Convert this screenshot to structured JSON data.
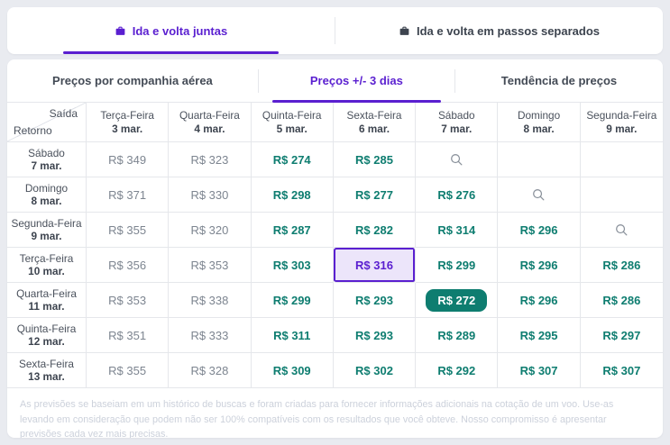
{
  "top_tabs": [
    {
      "label": "Ida e volta juntas",
      "active": true
    },
    {
      "label": "Ida e volta em passos separados",
      "active": false
    }
  ],
  "inner_tabs": [
    {
      "label": "Preços por companhia aérea",
      "active": false
    },
    {
      "label": "Preços +/- 3 dias",
      "active": true
    },
    {
      "label": "Tendência de preços",
      "active": false
    }
  ],
  "matrix": {
    "corner": {
      "top_label": "Saída",
      "bottom_label": "Retorno"
    },
    "columns": [
      {
        "day": "Terça-Feira",
        "date": "3 mar."
      },
      {
        "day": "Quarta-Feira",
        "date": "4 mar."
      },
      {
        "day": "Quinta-Feira",
        "date": "5 mar."
      },
      {
        "day": "Sexta-Feira",
        "date": "6 mar."
      },
      {
        "day": "Sábado",
        "date": "7 mar."
      },
      {
        "day": "Domingo",
        "date": "8 mar."
      },
      {
        "day": "Segunda-Feira",
        "date": "9 mar."
      }
    ],
    "rows": [
      {
        "day": "Sábado",
        "date": "7 mar.",
        "cells": [
          {
            "type": "muted",
            "value": "R$ 349"
          },
          {
            "type": "muted",
            "value": "R$ 323"
          },
          {
            "type": "low",
            "value": "R$ 274"
          },
          {
            "type": "low",
            "value": "R$ 285"
          },
          {
            "type": "search"
          },
          {
            "type": "empty"
          },
          {
            "type": "empty"
          }
        ]
      },
      {
        "day": "Domingo",
        "date": "8 mar.",
        "cells": [
          {
            "type": "muted",
            "value": "R$ 371"
          },
          {
            "type": "muted",
            "value": "R$ 330"
          },
          {
            "type": "low",
            "value": "R$ 298"
          },
          {
            "type": "low",
            "value": "R$ 277"
          },
          {
            "type": "low",
            "value": "R$ 276"
          },
          {
            "type": "search"
          },
          {
            "type": "empty"
          }
        ]
      },
      {
        "day": "Segunda-Feira",
        "date": "9 mar.",
        "cells": [
          {
            "type": "muted",
            "value": "R$ 355"
          },
          {
            "type": "muted",
            "value": "R$ 320"
          },
          {
            "type": "low",
            "value": "R$ 287"
          },
          {
            "type": "low",
            "value": "R$ 282"
          },
          {
            "type": "low",
            "value": "R$ 314"
          },
          {
            "type": "low",
            "value": "R$ 296"
          },
          {
            "type": "search"
          }
        ]
      },
      {
        "day": "Terça-Feira",
        "date": "10 mar.",
        "cells": [
          {
            "type": "muted",
            "value": "R$ 356"
          },
          {
            "type": "muted",
            "value": "R$ 353"
          },
          {
            "type": "low",
            "value": "R$ 303"
          },
          {
            "type": "selected",
            "value": "R$ 316"
          },
          {
            "type": "low",
            "value": "R$ 299"
          },
          {
            "type": "low",
            "value": "R$ 296"
          },
          {
            "type": "low",
            "value": "R$ 286"
          }
        ]
      },
      {
        "day": "Quarta-Feira",
        "date": "11 mar.",
        "cells": [
          {
            "type": "muted",
            "value": "R$ 353"
          },
          {
            "type": "muted",
            "value": "R$ 338"
          },
          {
            "type": "low",
            "value": "R$ 299"
          },
          {
            "type": "low",
            "value": "R$ 293"
          },
          {
            "type": "best",
            "value": "R$ 272"
          },
          {
            "type": "low",
            "value": "R$ 296"
          },
          {
            "type": "low",
            "value": "R$ 286"
          }
        ]
      },
      {
        "day": "Quinta-Feira",
        "date": "12 mar.",
        "cells": [
          {
            "type": "muted",
            "value": "R$ 351"
          },
          {
            "type": "muted",
            "value": "R$ 333"
          },
          {
            "type": "low",
            "value": "R$ 311"
          },
          {
            "type": "low",
            "value": "R$ 293"
          },
          {
            "type": "low",
            "value": "R$ 289"
          },
          {
            "type": "low",
            "value": "R$ 295"
          },
          {
            "type": "low",
            "value": "R$ 297"
          }
        ]
      },
      {
        "day": "Sexta-Feira",
        "date": "13 mar.",
        "cells": [
          {
            "type": "muted",
            "value": "R$ 355"
          },
          {
            "type": "muted",
            "value": "R$ 328"
          },
          {
            "type": "low",
            "value": "R$ 309"
          },
          {
            "type": "low",
            "value": "R$ 302"
          },
          {
            "type": "low",
            "value": "R$ 292"
          },
          {
            "type": "low",
            "value": "R$ 307"
          },
          {
            "type": "low",
            "value": "R$ 307"
          }
        ]
      }
    ]
  },
  "disclaimer": "As previsões se baseiam em um histórico de buscas e foram criadas para fornecer informações adicionais na cotação de um voo. Use-as levando em consideração que podem não ser 100% compatíveis com os resultados que você obteve. Nosso compromisso é apresentar previsões cada vez mais precisas.",
  "colors": {
    "accent_purple": "#5a1fd0",
    "price_teal": "#0e7d70",
    "best_price_bg": "#0e7d70",
    "muted_price": "#7d8590",
    "selected_cell_bg": "#ece5fa"
  }
}
